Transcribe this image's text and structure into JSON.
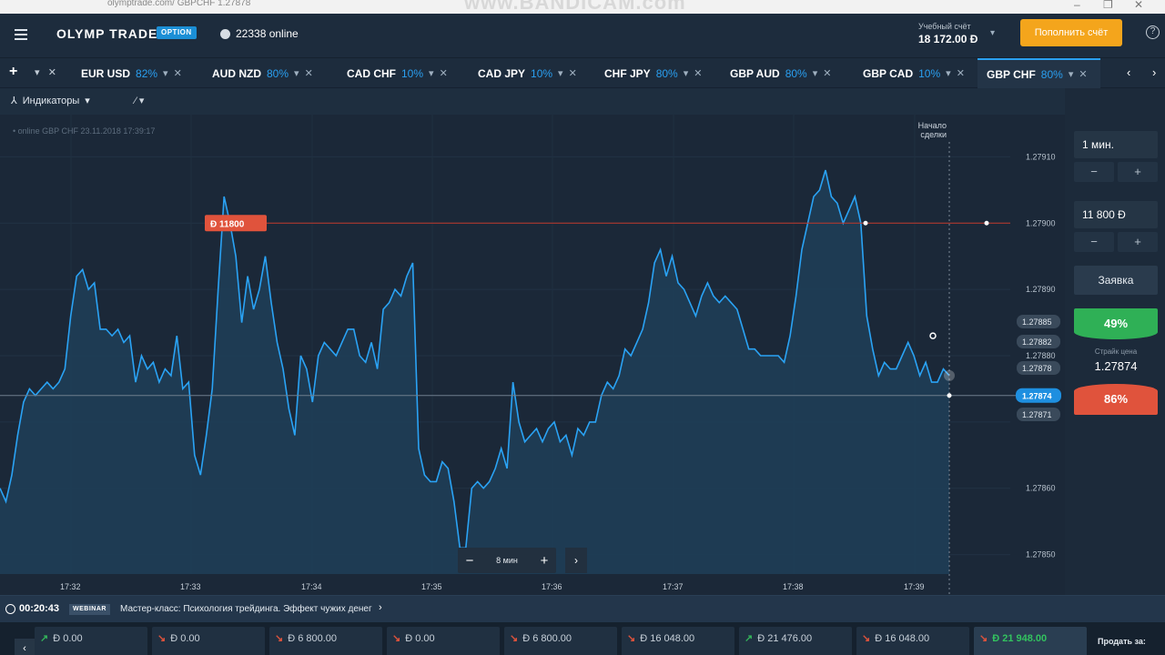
{
  "browser": {
    "url": "olymptrade.com/   GBPCHF 1.27878",
    "watermark": "www.BANDICAM.com"
  },
  "header": {
    "logo": "OLYMP TRADE",
    "logo_badge": "OPTION",
    "online": "22338 online",
    "account_label": "Учебный счёт",
    "account_balance": "18 172.00 Ð",
    "deposit_label": "Пополнить счёт",
    "help": "?"
  },
  "tabs": {
    "add": "+",
    "items": [
      {
        "name": "EUR USD",
        "pct": "82%"
      },
      {
        "name": "AUD NZD",
        "pct": "80%"
      },
      {
        "name": "CAD CHF",
        "pct": "10%"
      },
      {
        "name": "CAD JPY",
        "pct": "10%"
      },
      {
        "name": "CHF JPY",
        "pct": "80%"
      },
      {
        "name": "GBP AUD",
        "pct": "80%"
      },
      {
        "name": "GBP CAD",
        "pct": "10%"
      },
      {
        "name": "GBP CHF",
        "pct": "80%"
      }
    ],
    "active_index": 7,
    "prev": "‹",
    "next": "›"
  },
  "toolbar": {
    "indicators": "Индикаторы",
    "draw": "⁄ ▾"
  },
  "chart": {
    "info": "online GBP CHF 23.11.2018 17:39:17",
    "deal_start": "Начало сделки",
    "trade_badge": "Đ 11800",
    "zoom_minus": "−",
    "zoom_value": "8 мин",
    "zoom_plus": "+",
    "zoom_next": "›",
    "price_tag_current": "1.27874"
  },
  "chart_data": {
    "type": "line",
    "y_ticks": [
      "1.27910",
      "1.27900",
      "1.27890",
      "1.27880",
      "1.27860",
      "1.27850"
    ],
    "x_ticks": [
      "17:32",
      "17:33",
      "17:34",
      "17:35",
      "17:36",
      "17:37",
      "17:38",
      "17:39"
    ],
    "side_prices": [
      "1.27885",
      "1.27882",
      "1.27878",
      "1.27871"
    ],
    "ylim": [
      1.27845,
      1.27915
    ],
    "trade_level": 1.279,
    "current_price": 1.27874,
    "series": [
      {
        "name": "GBP CHF",
        "values": [
          1.2786,
          1.27858,
          1.27862,
          1.27868,
          1.27873,
          1.27875,
          1.27874,
          1.27875,
          1.27876,
          1.27875,
          1.27876,
          1.27878,
          1.27886,
          1.27892,
          1.27893,
          1.2789,
          1.27891,
          1.27884,
          1.27884,
          1.27883,
          1.27884,
          1.27882,
          1.27883,
          1.27876,
          1.2788,
          1.27878,
          1.27879,
          1.27876,
          1.27878,
          1.27877,
          1.27883,
          1.27875,
          1.27876,
          1.27865,
          1.27862,
          1.27868,
          1.27875,
          1.2789,
          1.27904,
          1.279,
          1.27895,
          1.27885,
          1.27892,
          1.27887,
          1.2789,
          1.27895,
          1.27888,
          1.27882,
          1.27878,
          1.27872,
          1.27868,
          1.2788,
          1.27878,
          1.27873,
          1.2788,
          1.27882,
          1.27881,
          1.2788,
          1.27882,
          1.27884,
          1.27884,
          1.2788,
          1.27879,
          1.27882,
          1.27878,
          1.27887,
          1.27888,
          1.2789,
          1.27889,
          1.27892,
          1.27894,
          1.27866,
          1.27862,
          1.27861,
          1.27861,
          1.27864,
          1.27863,
          1.27858,
          1.27851,
          1.27851,
          1.2786,
          1.27861,
          1.2786,
          1.27861,
          1.27863,
          1.27866,
          1.27863,
          1.27876,
          1.2787,
          1.27867,
          1.27868,
          1.27869,
          1.27867,
          1.27869,
          1.2787,
          1.27867,
          1.27868,
          1.27865,
          1.27869,
          1.27868,
          1.2787,
          1.2787,
          1.27874,
          1.27876,
          1.27875,
          1.27877,
          1.27881,
          1.2788,
          1.27882,
          1.27884,
          1.27888,
          1.27894,
          1.27896,
          1.27892,
          1.27895,
          1.27891,
          1.2789,
          1.27888,
          1.27886,
          1.27889,
          1.27891,
          1.27889,
          1.27888,
          1.27889,
          1.27888,
          1.27887,
          1.27884,
          1.27881,
          1.27881,
          1.2788,
          1.2788,
          1.2788,
          1.2788,
          1.27879,
          1.27883,
          1.27889,
          1.27896,
          1.279,
          1.27904,
          1.27905,
          1.27908,
          1.27904,
          1.27903,
          1.279,
          1.27902,
          1.27904,
          1.279,
          1.27886,
          1.27881,
          1.27877,
          1.27879,
          1.27878,
          1.27878,
          1.2788,
          1.27882,
          1.2788,
          1.27877,
          1.27879,
          1.27876,
          1.27876,
          1.27878,
          1.27877
        ]
      }
    ]
  },
  "panel": {
    "time": "1 мин.",
    "time_minus": "−",
    "time_plus": "+",
    "amount": "11 800 Đ",
    "amount_minus": "−",
    "amount_plus": "+",
    "order": "Заявка",
    "up_pct": "49%",
    "strike_label": "Страйк цена",
    "strike_value": "1.27874",
    "down_pct": "86%"
  },
  "webinar": {
    "timer": "00:20:43",
    "badge": "WEBINAR",
    "title": "Мастер-класс: Психология трейдинга. Эффект чужих денег",
    "chevron": "›"
  },
  "deals": {
    "nav": "‹",
    "items": [
      {
        "amount": "Đ 0.00",
        "dir": "up"
      },
      {
        "amount": "Đ 0.00",
        "dir": "down"
      },
      {
        "amount": "Đ 6 800.00",
        "dir": "down"
      },
      {
        "amount": "Đ 0.00",
        "dir": "down"
      },
      {
        "amount": "Đ 6 800.00",
        "dir": "down"
      },
      {
        "amount": "Đ 16 048.00",
        "dir": "down"
      },
      {
        "amount": "Đ 21 476.00",
        "dir": "up"
      },
      {
        "amount": "Đ 16 048.00",
        "dir": "down"
      },
      {
        "amount": "Đ 21 948.00",
        "dir": "down"
      }
    ],
    "sell_label": "Продать за:"
  },
  "colors": {
    "accent": "#2a9ff0",
    "up": "#2fb056",
    "down": "#e0533c",
    "deposit": "#f4a51c"
  }
}
